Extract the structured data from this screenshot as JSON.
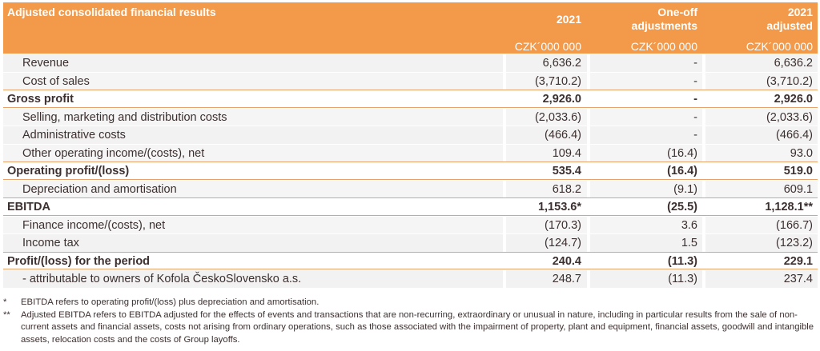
{
  "table": {
    "title": "Adjusted consolidated financial results",
    "columns": [
      {
        "header": "2021",
        "unit": "CZK´000 000"
      },
      {
        "header_line1": "One-off",
        "header_line2": "adjustments",
        "unit": "CZK´000 000"
      },
      {
        "header_line1": "2021",
        "header_line2": "adjusted",
        "unit": "CZK´000 000"
      }
    ],
    "rows": [
      {
        "label": "Revenue",
        "v1": "6,636.2",
        "v2": "-",
        "v3": "6,636.2"
      },
      {
        "label": "Cost of sales",
        "v1": "(3,710.2)",
        "v2": "-",
        "v3": "(3,710.2)"
      },
      {
        "label": "Gross profit",
        "v1": "2,926.0",
        "v2": "-",
        "v3": "2,926.0"
      },
      {
        "label": "Selling, marketing and distribution costs",
        "v1": "(2,033.6)",
        "v2": "-",
        "v3": "(2,033.6)"
      },
      {
        "label": "Administrative costs",
        "v1": "(466.4)",
        "v2": "-",
        "v3": "(466.4)"
      },
      {
        "label": "Other operating income/(costs), net",
        "v1": "109.4",
        "v2": "(16.4)",
        "v3": "93.0"
      },
      {
        "label": "Operating profit/(loss)",
        "v1": "535.4",
        "v2": "(16.4)",
        "v3": "519.0"
      },
      {
        "label": "Depreciation and amortisation",
        "v1": "618.2",
        "v2": "(9.1)",
        "v3": "609.1"
      },
      {
        "label": "EBITDA",
        "v1": "1,153.6*",
        "v2": "(25.5)",
        "v3": "1,128.1**"
      },
      {
        "label": "Finance income/(costs), net",
        "v1": "(170.3)",
        "v2": "3.6",
        "v3": "(166.7)"
      },
      {
        "label": "Income tax",
        "v1": "(124.7)",
        "v2": "1.5",
        "v3": "(123.2)"
      },
      {
        "label": "Profit/(loss) for the period",
        "v1": "240.4",
        "v2": "(11.3)",
        "v3": "229.1"
      },
      {
        "label": "- attributable to owners of Kofola ČeskoSlovensko a.s.",
        "v1": "248.7",
        "v2": "(11.3)",
        "v3": "237.4"
      }
    ]
  },
  "footnotes": [
    {
      "marker": "*",
      "text": "EBITDA refers to operating profit/(loss) plus depreciation and amortisation."
    },
    {
      "marker": "**",
      "text": "Adjusted EBITDA refers to EBITDA adjusted for the effects of events and transactions that are non-recurring, extraordinary or unusual in nature, including in particular results from the sale of non-current assets and financial assets, costs not arising from ordinary operations, such as those associated with the impairment of property, plant and equipment, financial assets, goodwill and intangible assets, relocation costs and the costs of Group layoffs."
    }
  ]
}
